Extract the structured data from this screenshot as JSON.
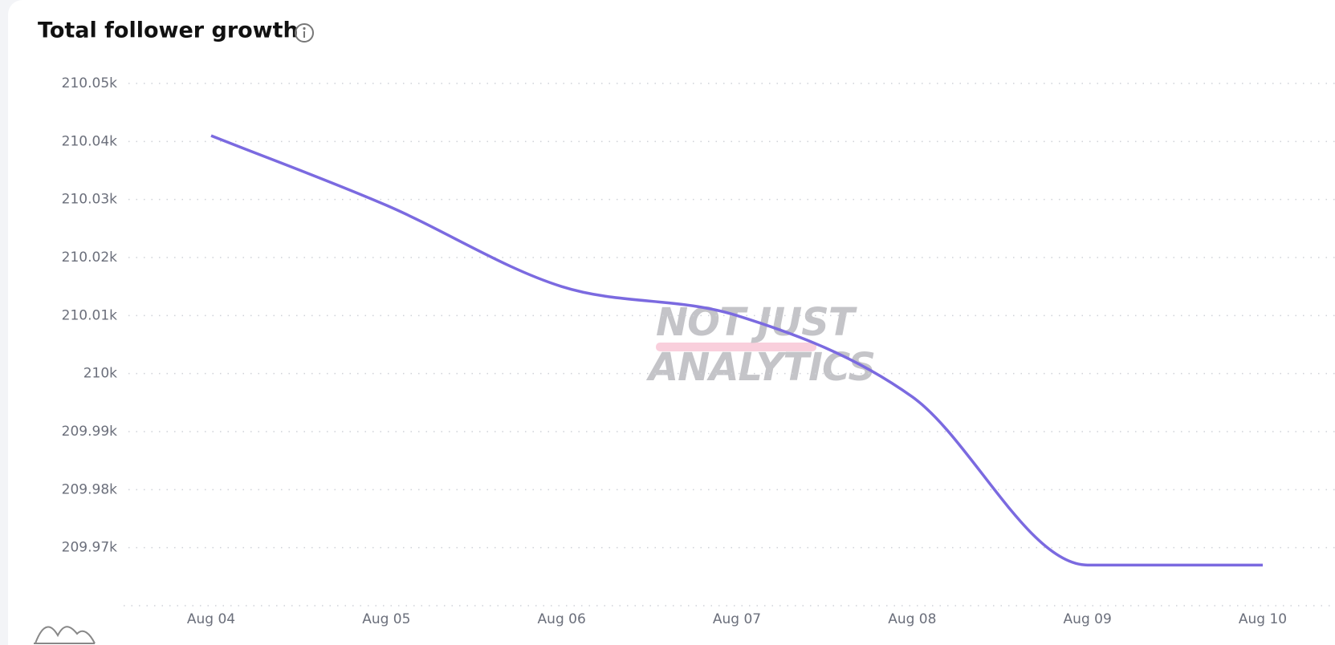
{
  "chart_data": {
    "type": "line",
    "title": "Total follower growth",
    "watermark": [
      "NOT JUST",
      "ANALYTICS"
    ],
    "categories": [
      "Aug 04",
      "Aug 05",
      "Aug 06",
      "Aug 07",
      "Aug 08",
      "Aug 09",
      "Aug 10"
    ],
    "values": [
      210041,
      210029,
      210015,
      210010,
      209996,
      209967,
      209967
    ],
    "color": "#7b6ae0",
    "ylim": [
      209960,
      210050
    ],
    "yticks": [
      {
        "value": 209970,
        "label": "209.97k"
      },
      {
        "value": 209980,
        "label": "209.98k"
      },
      {
        "value": 209990,
        "label": "209.99k"
      },
      {
        "value": 210000,
        "label": "210k"
      },
      {
        "value": 210010,
        "label": "210.01k"
      },
      {
        "value": 210020,
        "label": "210.02k"
      },
      {
        "value": 210030,
        "label": "210.03k"
      },
      {
        "value": 210040,
        "label": "210.04k"
      },
      {
        "value": 210050,
        "label": "210.05k"
      }
    ],
    "grid": true
  }
}
